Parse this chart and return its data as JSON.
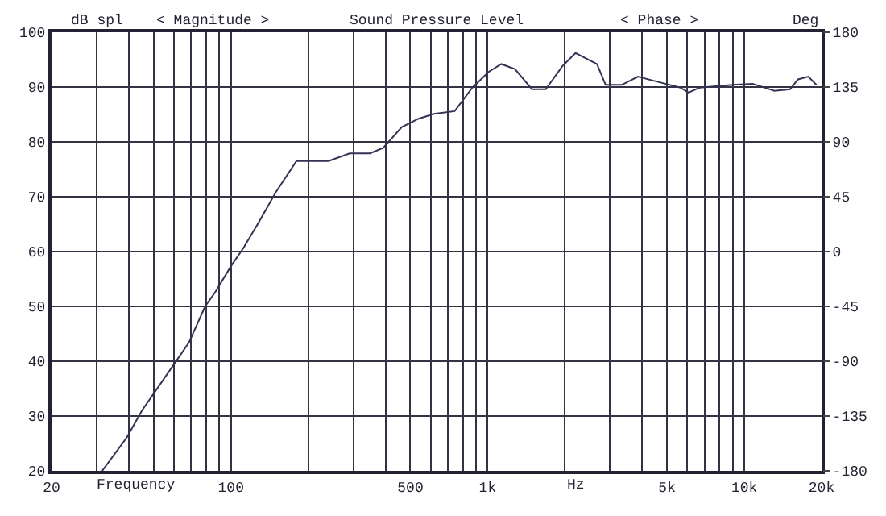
{
  "chart_data": {
    "type": "line",
    "title": "Sound Pressure Level",
    "xlabel": "Frequency",
    "ylabel": "dB spl",
    "y2label": "Deg",
    "annotations": [
      "< Magnitude >",
      "< Phase >",
      "Hz"
    ],
    "log": "x",
    "grid": true,
    "legend": false,
    "marker": "none",
    "line_style": "solid",
    "x": [
      31.5,
      39.3,
      45,
      59.3,
      68.6,
      79.5,
      86.6,
      99.9,
      112,
      129,
      149,
      180,
      198,
      240,
      290,
      348,
      392,
      463,
      536,
      617,
      744,
      872,
      1011,
      1130,
      1277,
      1489,
      1684,
      1955,
      2200,
      2666,
      2882,
      3330,
      3850,
      4650,
      5640,
      6060,
      6710,
      8980,
      10780,
      13110,
      15070,
      16200,
      17770,
      19100
    ],
    "series": [
      {
        "color": "#333355",
        "values": [
          20,
          26.1,
          31,
          39.1,
          43.4,
          50.1,
          52.5,
          57.3,
          60.7,
          65.5,
          70.7,
          76.5,
          76.5,
          76.5,
          77.9,
          77.9,
          78.9,
          82.7,
          84.2,
          85.1,
          85.6,
          89.9,
          92.8,
          94.2,
          93.3,
          89.6,
          89.6,
          93.8,
          96.2,
          94.2,
          90.4,
          90.4,
          91.9,
          90.9,
          89.9,
          89,
          89.9,
          90.4,
          90.6,
          89.3,
          89.6,
          91.4,
          91.9,
          90.4
        ]
      }
    ],
    "xlim": [
      20,
      20000
    ],
    "xticks": [
      20,
      {
        "value": 30,
        "label": null
      },
      {
        "value": 40,
        "label": null
      },
      {
        "value": 50,
        "label": null
      },
      {
        "value": 60,
        "label": null
      },
      {
        "value": 70,
        "label": null
      },
      {
        "value": 80,
        "label": null
      },
      {
        "value": 90,
        "label": null
      },
      100,
      {
        "value": 200,
        "label": null
      },
      {
        "value": 300,
        "label": null
      },
      {
        "value": 400,
        "label": null
      },
      500,
      {
        "value": 600,
        "label": null
      },
      {
        "value": 700,
        "label": null
      },
      {
        "value": 800,
        "label": null
      },
      {
        "value": 900,
        "label": null
      },
      {
        "value": 1000,
        "label": "1k"
      },
      {
        "value": 2000,
        "label": null
      },
      {
        "value": 3000,
        "label": null
      },
      {
        "value": 4000,
        "label": null
      },
      {
        "value": 5000,
        "label": "5k"
      },
      {
        "value": 6000,
        "label": null
      },
      {
        "value": 7000,
        "label": null
      },
      {
        "value": 8000,
        "label": null
      },
      {
        "value": 9000,
        "label": null
      },
      {
        "value": 10000,
        "label": "10k"
      },
      {
        "value": 20000,
        "label": "20k"
      }
    ],
    "ylim": [
      20,
      100
    ],
    "yticks": [
      20,
      30,
      40,
      50,
      60,
      70,
      80,
      90,
      100
    ],
    "y2lim": [
      -180,
      180
    ],
    "y2ticks": [
      -180,
      -135,
      -90,
      -45,
      0,
      45,
      90,
      135,
      180
    ]
  }
}
